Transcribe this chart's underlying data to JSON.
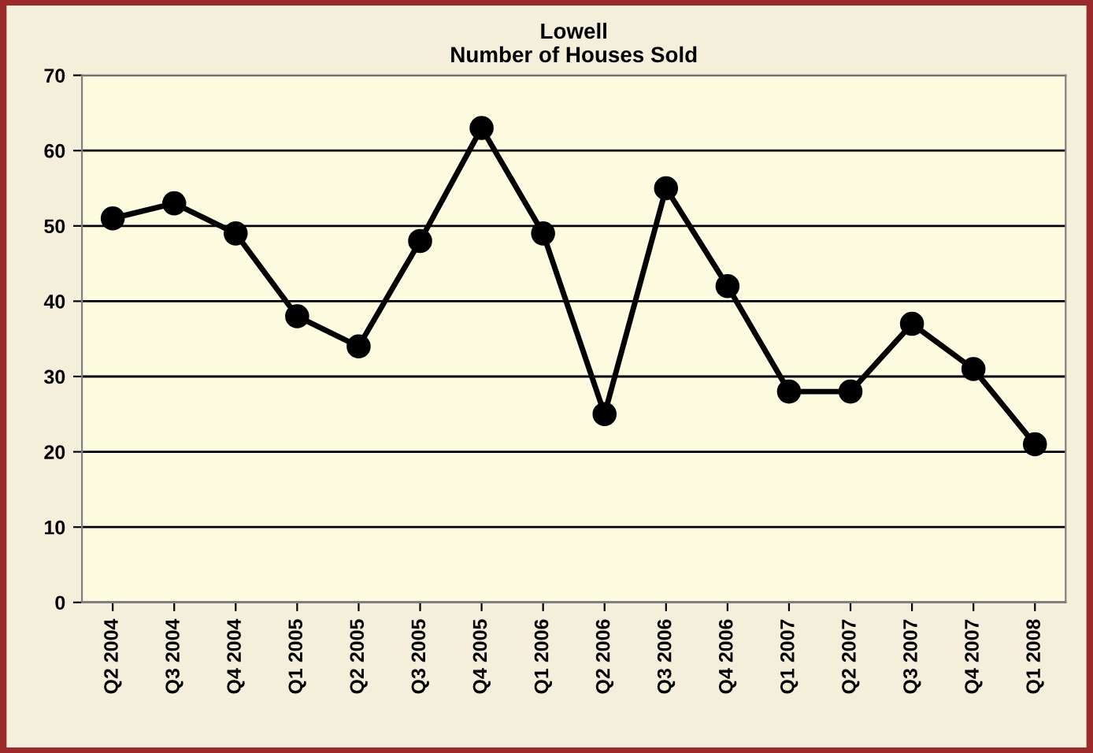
{
  "chart_data": {
    "type": "line",
    "title": "Lowell\nNumber of Houses Sold",
    "categories": [
      "Q2 2004",
      "Q3 2004",
      "Q4 2004",
      "Q1 2005",
      "Q2 2005",
      "Q3 2005",
      "Q4 2005",
      "Q1 2006",
      "Q2 2006",
      "Q3 2006",
      "Q4 2006",
      "Q1 2007",
      "Q2 2007",
      "Q3 2007",
      "Q4 2007",
      "Q1 2008"
    ],
    "series": [
      {
        "color": "#000000",
        "values": [
          51,
          53,
          49,
          38,
          34,
          48,
          63,
          49,
          25,
          55,
          42,
          28,
          28,
          37,
          31,
          21
        ]
      }
    ],
    "ylim": [
      0,
      70
    ],
    "yticks": [
      0,
      10,
      20,
      30,
      40,
      50,
      60,
      70
    ],
    "grid": "y",
    "legend": false,
    "marker": "circle",
    "line_style": "solid"
  }
}
